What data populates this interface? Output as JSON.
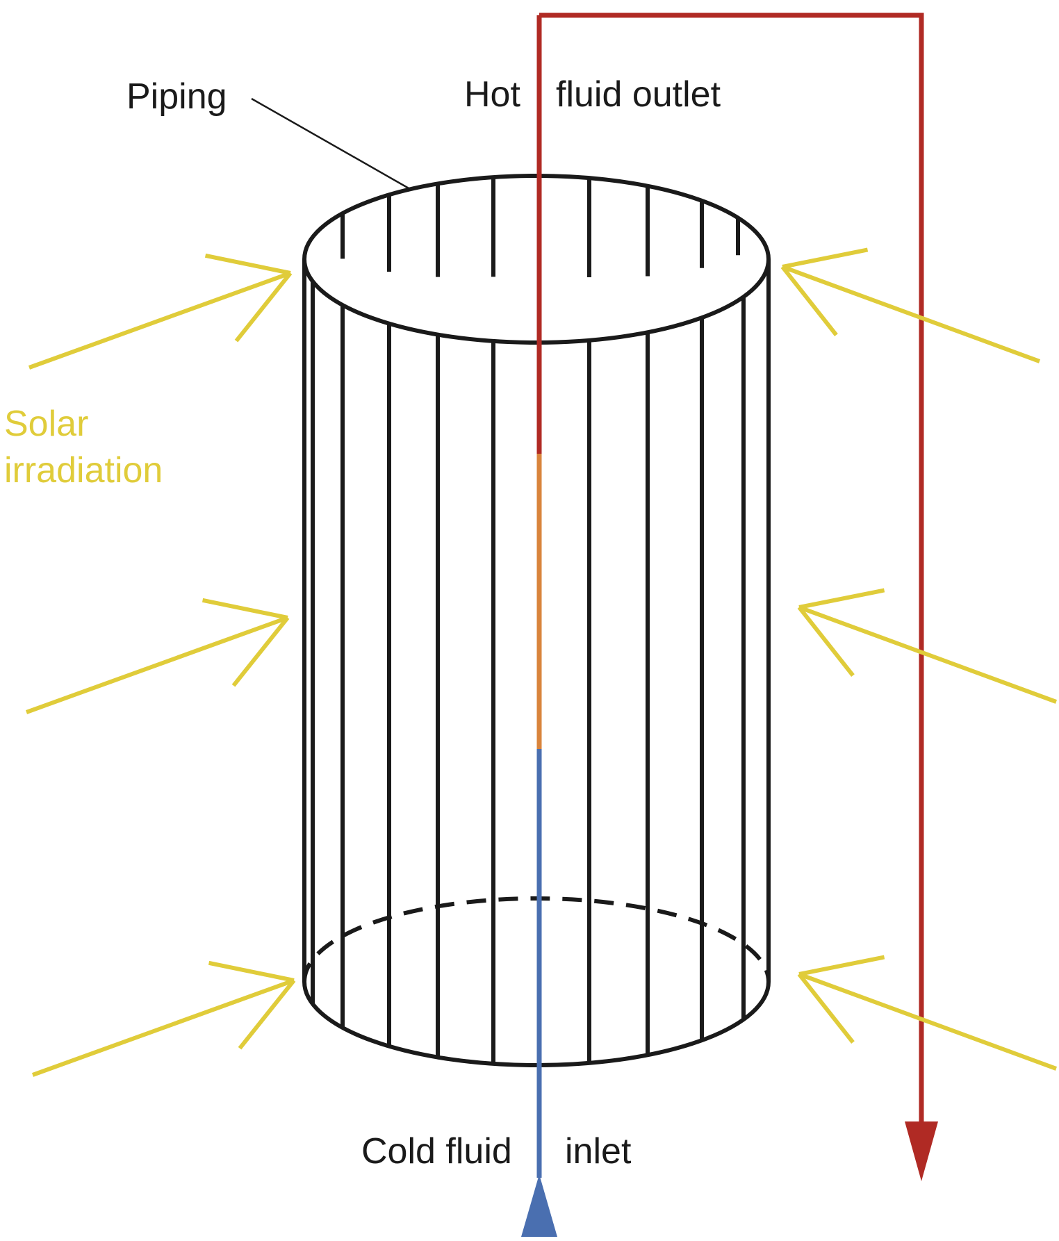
{
  "labels": {
    "piping": "Piping",
    "hot": "Hot",
    "fluid_outlet": "fluid outlet",
    "cold_fluid": "Cold fluid",
    "inlet": "inlet",
    "solar_line1": "Solar",
    "solar_line2": "irradiation"
  },
  "colors": {
    "outline": "#1a1a1a",
    "hot_pipe": "#b02a24",
    "warm_pipe": "#d9843c",
    "cold_pipe": "#4a6fb0",
    "inlet_arrow": "#4a6fb0",
    "solar": "#e0cc3a"
  }
}
